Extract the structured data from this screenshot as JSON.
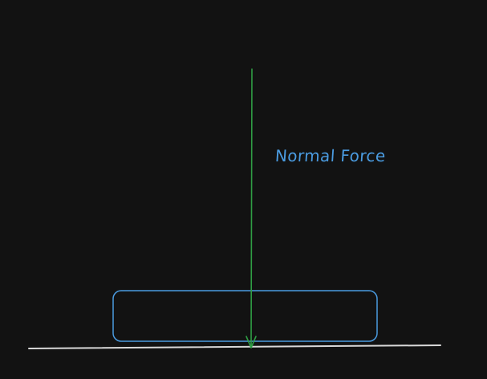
{
  "diagram": {
    "label": "Normal Force",
    "colors": {
      "background": "#121212",
      "arrow": "#2f9e44",
      "box": "#4a9be0",
      "ground": "#d9d9d9",
      "label": "#4a9be0"
    }
  }
}
